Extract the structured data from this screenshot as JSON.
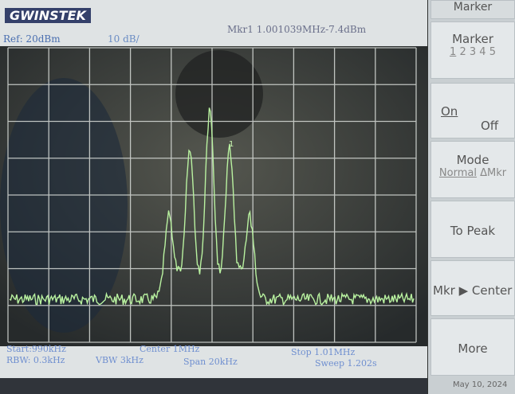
{
  "header": {
    "logo": "GWINSTEK",
    "ref_level": "Ref: 20dBm",
    "scale": "10 dB/",
    "marker_readout": "Mkr1 1.001039MHz-7.4dBm"
  },
  "trace": {
    "marker_label": "1"
  },
  "footer": {
    "start": "Start:990kHz",
    "center": "Center 1MHz",
    "stop": "Stop 1.01MHz",
    "rbw": "RBW: 0.3kHz",
    "vbw": "VBW 3kHz",
    "span": "Span 20kHz",
    "sweep": "Sweep 1.202s"
  },
  "softkeys": {
    "title": "Marker",
    "keys": [
      {
        "label": "Marker",
        "options": [
          "1",
          "2",
          "3",
          "4",
          "5"
        ]
      },
      {
        "options": [
          "On",
          "Off"
        ]
      },
      {
        "label": "Mode",
        "options": [
          "Normal",
          "ΔMkr"
        ]
      },
      {
        "label": "To Peak"
      },
      {
        "label": "Mkr ▶ Center"
      },
      {
        "label": "More"
      }
    ],
    "date": "May 10, 2024"
  }
}
